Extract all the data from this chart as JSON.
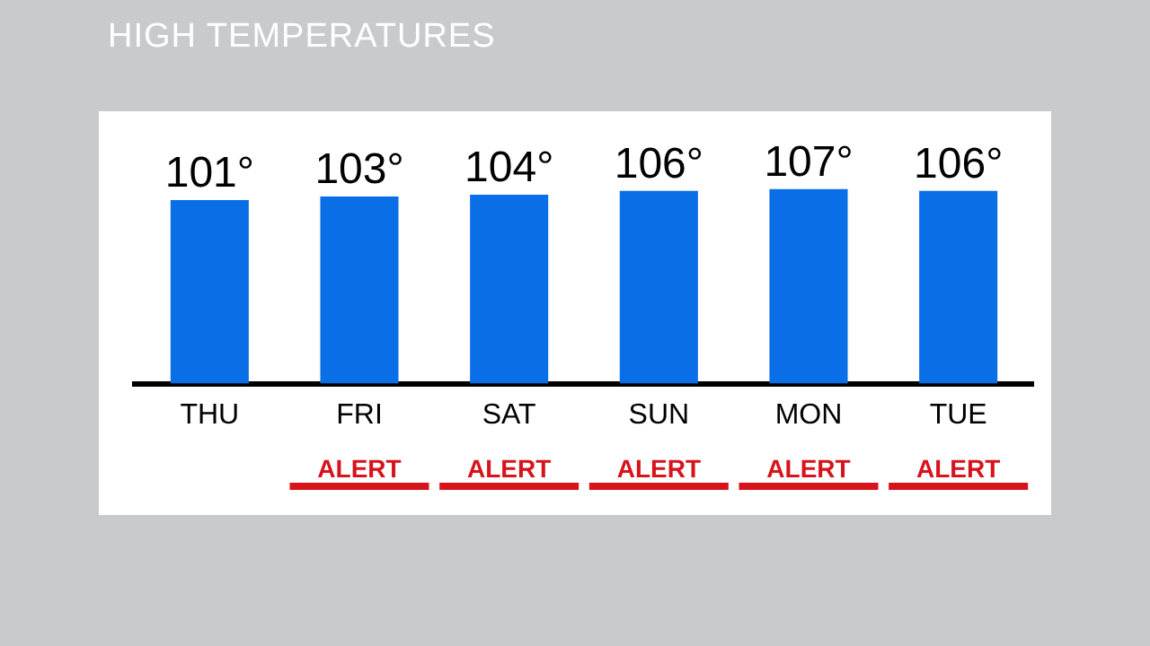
{
  "chart_data": {
    "type": "bar",
    "title": "HIGH TEMPERATURES",
    "categories": [
      "THU",
      "FRI",
      "SAT",
      "SUN",
      "MON",
      "TUE"
    ],
    "values": [
      101,
      103,
      104,
      106,
      107,
      106
    ],
    "value_labels": [
      "101°",
      "103°",
      "104°",
      "106°",
      "107°",
      "106°"
    ],
    "color": "#0a6ee6",
    "grid": false,
    "legend": false,
    "annotations": [
      "ALERT",
      "ALERT",
      "ALERT",
      "ALERT",
      "ALERT"
    ]
  }
}
